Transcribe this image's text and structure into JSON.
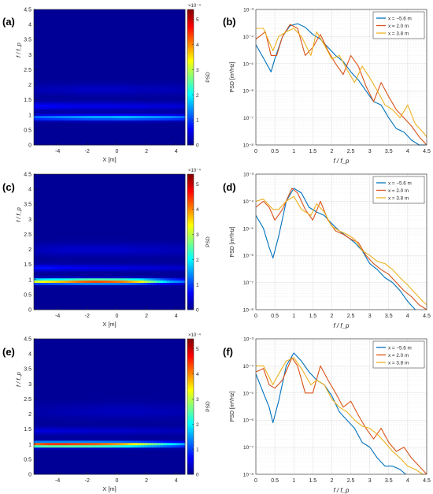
{
  "figure": {
    "panel_labels": [
      "(a)",
      "(b)",
      "(c)",
      "(d)",
      "(e)",
      "(f)"
    ]
  },
  "colors": {
    "series": [
      "#0072BD",
      "#D95319",
      "#EDB120"
    ],
    "colormap": [
      "#00008F",
      "#0000FF",
      "#0080FF",
      "#00FFFF",
      "#80FF80",
      "#FFFF00",
      "#FF8000",
      "#FF0000",
      "#800000"
    ]
  },
  "chart_data": [
    {
      "panel": "(a)",
      "type": "heatmap",
      "xlabel": "X [m]",
      "ylabel": "f / f_p",
      "xlim": [
        -5.6,
        4.6
      ],
      "ylim": [
        0,
        4.5
      ],
      "xticks": [
        "-4",
        "-2",
        "0",
        "2",
        "4"
      ],
      "yticks": [
        "0",
        "0.5",
        "1",
        "1.5",
        "2",
        "2.5",
        "3",
        "3.5",
        "4",
        "4.5"
      ],
      "colorbar": {
        "label": "PSD",
        "exponent": "×10⁻⁴",
        "ticks": [
          "0",
          "1",
          "2",
          "3",
          "4",
          "5"
        ],
        "range": [
          0,
          5.4
        ]
      },
      "ridges": [
        {
          "f": 0.92,
          "width": 0.09,
          "amp": [
            1.2,
            1.3,
            1.4,
            1.5,
            1.6,
            1.6,
            1.7,
            1.6,
            1.5,
            1.4,
            1.2
          ]
        },
        {
          "f": 1.3,
          "width": 0.12,
          "amp": [
            0.6,
            0.6,
            0.55,
            0.5,
            0.5,
            0.5,
            0.45,
            0.45,
            0.4,
            0.4,
            0.35
          ]
        },
        {
          "f": 1.85,
          "width": 0.18,
          "amp": [
            0.15,
            0.2,
            0.2,
            0.25,
            0.25,
            0.25,
            0.25,
            0.2,
            0.2,
            0.2,
            0.15
          ]
        }
      ]
    },
    {
      "panel": "(b)",
      "type": "line",
      "yscale": "log",
      "xlabel": "f / f_p",
      "ylabel": "PSD [m²/Hz]",
      "xlim": [
        0,
        4.5
      ],
      "ylim": [
        1e-08,
        0.001
      ],
      "xticks": [
        "0",
        "0.5",
        "1",
        "1.5",
        "2",
        "2.5",
        "3",
        "3.5",
        "4",
        "4.5"
      ],
      "yticks": [
        "10⁻⁸",
        "10⁻⁷",
        "10⁻⁶",
        "10⁻⁵",
        "10⁻⁴",
        "10⁻³"
      ],
      "legend": "top-right",
      "series": [
        {
          "name": "x = −5.6 m",
          "x": [
            0,
            0.25,
            0.4,
            0.5,
            0.7,
            0.9,
            1.1,
            1.3,
            1.5,
            1.7,
            1.9,
            2.1,
            2.3,
            2.5,
            2.7,
            2.9,
            3.1,
            3.3,
            3.5,
            3.7,
            3.9,
            4.1,
            4.3,
            4.5
          ],
          "y": [
            5e-05,
            1.2e-05,
            5e-06,
            1.5e-05,
            0.0001,
            0.00025,
            0.0003,
            0.00022,
            0.00012,
            8e-05,
            4e-05,
            2e-05,
            1.2e-05,
            5e-06,
            2.5e-06,
            1e-06,
            4e-07,
            3e-07,
            1e-07,
            4e-08,
            3e-08,
            1.5e-08,
            1e-08,
            1e-08
          ]
        },
        {
          "name": "x = 2.0 m",
          "x": [
            0,
            0.25,
            0.4,
            0.55,
            0.7,
            0.9,
            1.1,
            1.3,
            1.5,
            1.7,
            1.9,
            2.1,
            2.3,
            2.5,
            2.7,
            2.9,
            3.1,
            3.3,
            3.5,
            3.7,
            3.9,
            4.1,
            4.3,
            4.5
          ],
          "y": [
            8e-05,
            0.00015,
            2e-05,
            2e-05,
            0.0001,
            0.00028,
            0.0002,
            2e-05,
            4e-05,
            0.00012,
            3e-05,
            1e-05,
            4e-06,
            2e-05,
            8e-06,
            1.5e-06,
            4e-07,
            2e-06,
            6e-07,
            2e-07,
            1e-07,
            5e-08,
            2e-08,
            1e-08
          ]
        },
        {
          "name": "x = 3.8 m",
          "x": [
            0,
            0.2,
            0.45,
            0.6,
            0.8,
            1.0,
            1.2,
            1.45,
            1.6,
            1.8,
            2.0,
            2.2,
            2.4,
            2.6,
            2.8,
            3.0,
            3.2,
            3.4,
            3.6,
            3.8,
            4.0,
            4.2,
            4.4,
            4.5
          ],
          "y": [
            0.0002,
            0.0002,
            3e-05,
            0.0001,
            0.00015,
            0.0002,
            0.0001,
            2e-05,
            0.00015,
            5e-05,
            1.5e-05,
            2e-05,
            6e-06,
            2e-06,
            8e-06,
            3e-06,
            1e-06,
            3e-07,
            2e-07,
            1e-07,
            3e-07,
            6e-08,
            3e-08,
            2e-08
          ]
        }
      ]
    },
    {
      "panel": "(c)",
      "type": "heatmap",
      "xlabel": "X [m]",
      "ylabel": "f / f_p",
      "xlim": [
        -5.6,
        4.6
      ],
      "ylim": [
        0,
        4.5
      ],
      "xticks": [
        "-4",
        "-2",
        "0",
        "2",
        "4"
      ],
      "yticks": [
        "0",
        "0.5",
        "1",
        "1.5",
        "2",
        "2.5",
        "3",
        "3.5",
        "4",
        "4.5"
      ],
      "colorbar": {
        "label": "PSD",
        "exponent": "×10⁻⁴",
        "ticks": [
          "0",
          "1",
          "2",
          "3",
          "4",
          "5"
        ],
        "range": [
          0,
          5.4
        ]
      },
      "ridges": [
        {
          "f": 0.95,
          "width": 0.08,
          "amp": [
            3.2,
            3.5,
            3.8,
            4.2,
            4.4,
            4.3,
            4.1,
            3.5,
            2.5,
            1.6,
            1.2
          ]
        },
        {
          "f": 1.4,
          "width": 0.1,
          "amp": [
            0.7,
            0.7,
            0.6,
            0.55,
            0.5,
            0.5,
            0.45,
            0.4,
            0.4,
            0.35,
            0.3
          ]
        },
        {
          "f": 2.0,
          "width": 0.2,
          "amp": [
            0.2,
            0.25,
            0.3,
            0.3,
            0.3,
            0.3,
            0.3,
            0.25,
            0.25,
            0.2,
            0.2
          ]
        }
      ]
    },
    {
      "panel": "(d)",
      "type": "line",
      "yscale": "log",
      "xlabel": "f / f_p",
      "ylabel": "PSD [m²/Hz]",
      "xlim": [
        0,
        4.5
      ],
      "ylim": [
        1e-08,
        0.001
      ],
      "xticks": [
        "0",
        "0.5",
        "1",
        "1.5",
        "2",
        "2.5",
        "3",
        "3.5",
        "4",
        "4.5"
      ],
      "yticks": [
        "10⁻⁸",
        "10⁻⁷",
        "10⁻⁶",
        "10⁻⁵",
        "10⁻⁴",
        "10⁻³"
      ],
      "legend": "top-right",
      "series": [
        {
          "name": "x = −5.6 m",
          "x": [
            0,
            0.2,
            0.35,
            0.45,
            0.6,
            0.8,
            1.0,
            1.2,
            1.4,
            1.6,
            1.8,
            2.0,
            2.2,
            2.4,
            2.6,
            2.8,
            3.0,
            3.2,
            3.4,
            3.6,
            3.8,
            4.0,
            4.2
          ],
          "y": [
            3e-05,
            1e-05,
            2e-06,
            8e-07,
            5e-06,
            0.0001,
            0.0003,
            0.0002,
            6e-05,
            4e-05,
            3e-05,
            1.5e-05,
            8e-06,
            5e-06,
            3e-06,
            1.5e-06,
            5e-07,
            3e-07,
            1.5e-07,
            1e-07,
            5e-08,
            2e-08,
            1e-08
          ]
        },
        {
          "name": "x = 2.0 m",
          "x": [
            0,
            0.2,
            0.35,
            0.5,
            0.7,
            0.95,
            1.1,
            1.3,
            1.5,
            1.7,
            1.9,
            2.1,
            2.3,
            2.5,
            2.7,
            2.9,
            3.1,
            3.3,
            3.5,
            3.7,
            3.9,
            4.1,
            4.3,
            4.5
          ],
          "y": [
            6e-05,
            0.0001,
            6e-05,
            2e-05,
            5e-05,
            0.0003,
            0.0002,
            5e-05,
            2e-05,
            0.0001,
            2e-05,
            8e-06,
            6e-06,
            4e-06,
            3e-06,
            1e-06,
            5e-07,
            3e-07,
            2e-07,
            1e-07,
            5e-08,
            3e-08,
            1.5e-08,
            1e-08
          ]
        },
        {
          "name": "x = 3.8 m",
          "x": [
            0,
            0.2,
            0.45,
            0.6,
            0.8,
            1.0,
            1.2,
            1.45,
            1.6,
            1.8,
            2.0,
            2.2,
            2.4,
            2.6,
            2.8,
            3.0,
            3.2,
            3.4,
            3.6,
            3.8,
            4.0,
            4.2,
            4.4,
            4.5
          ],
          "y": [
            0.0001,
            0.00012,
            5e-05,
            5e-05,
            0.0001,
            0.00015,
            5e-05,
            3e-05,
            8e-05,
            4e-05,
            1.2e-05,
            8e-06,
            6e-06,
            4e-06,
            1.5e-06,
            1e-06,
            6e-07,
            5e-07,
            3e-07,
            1.5e-07,
            8e-08,
            4e-08,
            2e-08,
            1.5e-08
          ]
        }
      ]
    },
    {
      "panel": "(e)",
      "type": "heatmap",
      "xlabel": "X [m]",
      "ylabel": "f / f_p",
      "xlim": [
        -5.6,
        4.6
      ],
      "ylim": [
        0,
        4.5
      ],
      "xticks": [
        "-4",
        "-2",
        "0",
        "2",
        "4"
      ],
      "yticks": [
        "0",
        "0.5",
        "1",
        "1.5",
        "2",
        "2.5",
        "3",
        "3.5",
        "4",
        "4.5"
      ],
      "colorbar": {
        "label": "PSD",
        "exponent": "×10⁻⁴",
        "ticks": [
          "0",
          "1",
          "2",
          "3",
          "4",
          "5"
        ],
        "range": [
          0,
          5.4
        ]
      },
      "ridges": [
        {
          "f": 1.0,
          "width": 0.08,
          "amp": [
            4.2,
            4.5,
            4.5,
            4.4,
            4.3,
            4.1,
            3.8,
            3.2,
            2.6,
            2.0,
            1.5
          ]
        },
        {
          "f": 1.45,
          "width": 0.12,
          "amp": [
            0.4,
            0.4,
            0.35,
            0.35,
            0.3,
            0.3,
            0.3,
            0.25,
            0.25,
            0.2,
            0.2
          ]
        },
        {
          "f": 2.1,
          "width": 0.25,
          "amp": [
            0.1,
            0.12,
            0.15,
            0.18,
            0.2,
            0.22,
            0.22,
            0.22,
            0.2,
            0.18,
            0.15
          ]
        }
      ]
    },
    {
      "panel": "(f)",
      "type": "line",
      "yscale": "log",
      "xlabel": "f / f_p",
      "ylabel": "PSD [m²/Hz]",
      "xlim": [
        0,
        4.5
      ],
      "ylim": [
        1e-08,
        0.001
      ],
      "xticks": [
        "0",
        "0.5",
        "1",
        "1.5",
        "2",
        "2.5",
        "3",
        "3.5",
        "4",
        "4.5"
      ],
      "yticks": [
        "10⁻⁸",
        "10⁻⁷",
        "10⁻⁶",
        "10⁻⁵",
        "10⁻⁴",
        "10⁻³"
      ],
      "legend": "top-right",
      "series": [
        {
          "name": "x = −5.6 m",
          "x": [
            0,
            0.2,
            0.35,
            0.45,
            0.6,
            0.8,
            1.0,
            1.2,
            1.4,
            1.6,
            1.8,
            2.0,
            2.2,
            2.4,
            2.6,
            2.8,
            3.0,
            3.2,
            3.4,
            3.6,
            3.8,
            3.95
          ],
          "y": [
            5e-05,
            1e-05,
            3e-06,
            8e-07,
            5e-06,
            0.0001,
            0.0003,
            0.00015,
            6e-05,
            3e-05,
            2e-05,
            8e-06,
            2e-06,
            1e-06,
            5e-07,
            1.5e-07,
            1e-07,
            4e-08,
            2e-08,
            2e-08,
            1.5e-08,
            1e-08
          ]
        },
        {
          "name": "x = 2.0 m",
          "x": [
            0,
            0.2,
            0.35,
            0.5,
            0.7,
            0.95,
            1.1,
            1.3,
            1.5,
            1.7,
            1.9,
            2.1,
            2.3,
            2.5,
            2.7,
            2.9,
            3.1,
            3.3,
            3.5,
            3.7,
            3.9,
            4.1,
            4.3,
            4.5
          ],
          "y": [
            6e-05,
            8e-05,
            2e-05,
            1.5e-05,
            3e-05,
            0.0002,
            0.0001,
            1e-05,
            1e-05,
            0.0001,
            3e-05,
            1e-05,
            3e-06,
            5e-06,
            1.5e-06,
            5e-07,
            2e-07,
            5e-07,
            1.5e-07,
            7e-08,
            1e-07,
            4e-08,
            2e-08,
            1e-08
          ]
        },
        {
          "name": "x = 3.8 m",
          "x": [
            0,
            0.2,
            0.45,
            0.6,
            0.8,
            1.0,
            1.2,
            1.45,
            1.6,
            1.8,
            2.0,
            2.2,
            2.4,
            2.6,
            2.8,
            3.0,
            3.2,
            3.4,
            3.6,
            3.8,
            4.0,
            4.2,
            4.4,
            4.5
          ],
          "y": [
            0.0001,
            0.0001,
            2e-05,
            5e-05,
            0.00015,
            0.0002,
            8e-05,
            2e-05,
            3e-05,
            2e-05,
            6e-06,
            3e-06,
            2e-06,
            1e-06,
            6e-07,
            5e-07,
            3e-07,
            1.5e-07,
            7e-08,
            4e-08,
            2e-08,
            1.5e-08,
            1e-08,
            1e-08
          ]
        }
      ]
    }
  ]
}
